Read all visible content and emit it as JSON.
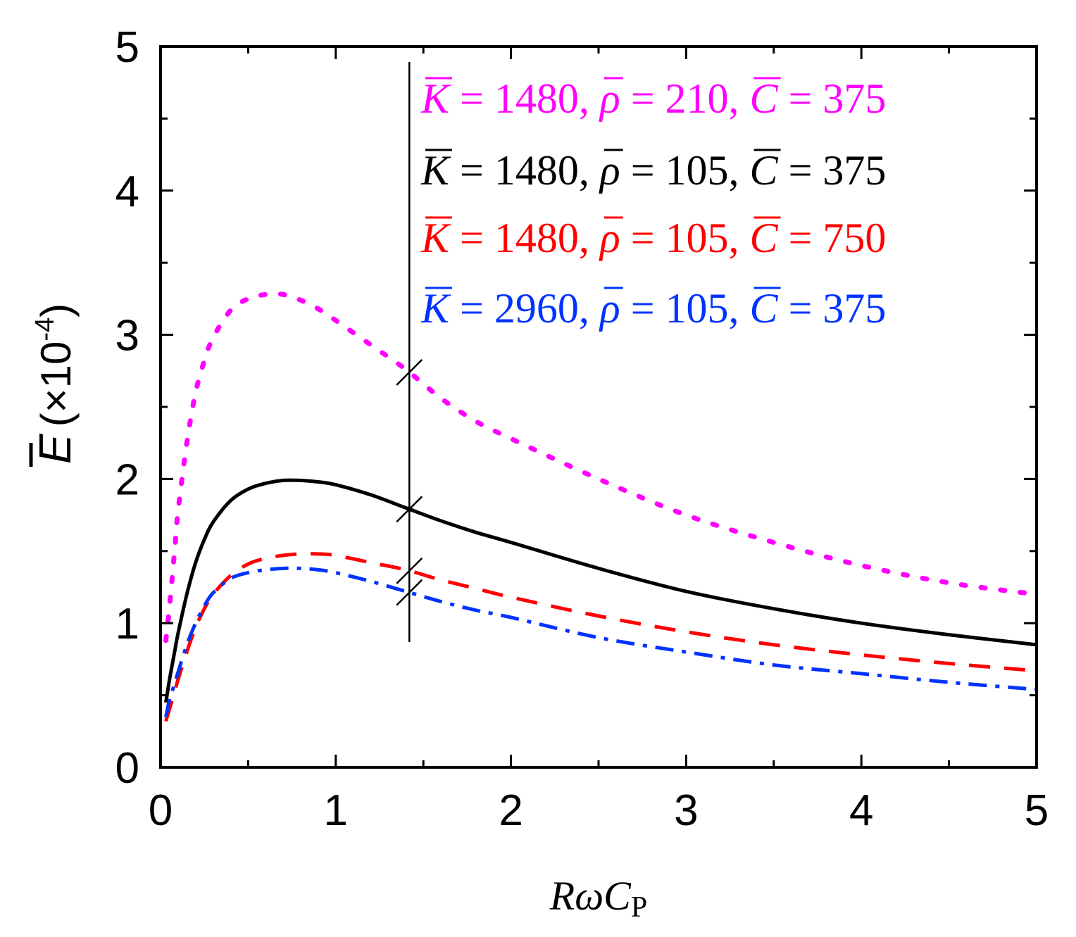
{
  "chart_data": {
    "type": "line",
    "xlabel": "RωCP",
    "xlabel_parts": {
      "main": "RωC",
      "subscript": "P"
    },
    "ylabel": "E (×10-4)",
    "ylabel_parts": {
      "symbol": "E",
      "unit_prefix": "(×10",
      "exponent": "-4",
      "unit_suffix": ")"
    },
    "xlim": [
      0,
      5
    ],
    "ylim": [
      0,
      5
    ],
    "x_ticks": [
      0,
      1,
      2,
      3,
      4,
      5
    ],
    "y_ticks": [
      0,
      1,
      2,
      3,
      4,
      5
    ],
    "x_tick_labels": [
      "0",
      "1",
      "2",
      "3",
      "4",
      "5"
    ],
    "y_tick_labels": [
      "0",
      "1",
      "2",
      "3",
      "4",
      "5"
    ],
    "x_minor_step": 0.5,
    "y_minor_step": 0.5,
    "grid": false,
    "legend_position": "top-right",
    "annotation_line_x": 1.42,
    "series": [
      {
        "name": "K̄ = 1480, ρ̄ = 210, C̄ = 375",
        "color": "#ff00ff",
        "style": "dotted",
        "legend": {
          "k": "1480",
          "rho": "210",
          "c": "375"
        },
        "x": [
          0.03,
          0.05,
          0.08,
          0.1,
          0.15,
          0.2,
          0.25,
          0.3,
          0.4,
          0.5,
          0.6,
          0.7,
          0.8,
          0.9,
          1.0,
          1.2,
          1.4,
          1.6,
          1.8,
          2.0,
          2.5,
          3.0,
          3.5,
          4.0,
          4.5,
          5.0
        ],
        "y": [
          0.88,
          1.1,
          1.5,
          1.78,
          2.25,
          2.6,
          2.82,
          2.98,
          3.17,
          3.25,
          3.28,
          3.28,
          3.24,
          3.18,
          3.1,
          2.93,
          2.76,
          2.56,
          2.4,
          2.28,
          2.0,
          1.75,
          1.56,
          1.4,
          1.28,
          1.2
        ]
      },
      {
        "name": "K̄ = 1480, ρ̄ = 105, C̄ = 375",
        "color": "#000000",
        "style": "solid",
        "legend": {
          "k": "1480",
          "rho": "105",
          "c": "375"
        },
        "x": [
          0.03,
          0.05,
          0.08,
          0.1,
          0.15,
          0.2,
          0.25,
          0.3,
          0.4,
          0.5,
          0.6,
          0.7,
          0.8,
          0.9,
          1.0,
          1.2,
          1.4,
          1.6,
          1.8,
          2.0,
          2.5,
          3.0,
          3.5,
          4.0,
          4.5,
          5.0
        ],
        "y": [
          0.45,
          0.6,
          0.8,
          0.93,
          1.2,
          1.42,
          1.58,
          1.7,
          1.85,
          1.93,
          1.97,
          1.99,
          1.99,
          1.98,
          1.96,
          1.89,
          1.8,
          1.71,
          1.63,
          1.56,
          1.38,
          1.22,
          1.1,
          1.0,
          0.92,
          0.85
        ]
      },
      {
        "name": "K̄ = 1480, ρ̄ = 105, C̄ = 750",
        "color": "#ff0000",
        "style": "dashed",
        "legend": {
          "k": "1480",
          "rho": "105",
          "c": "750"
        },
        "x": [
          0.03,
          0.05,
          0.08,
          0.1,
          0.15,
          0.2,
          0.25,
          0.3,
          0.4,
          0.5,
          0.6,
          0.7,
          0.8,
          0.9,
          1.0,
          1.2,
          1.4,
          1.6,
          1.8,
          2.0,
          2.5,
          3.0,
          3.5,
          4.0,
          4.5,
          5.0
        ],
        "y": [
          0.32,
          0.4,
          0.52,
          0.61,
          0.8,
          0.97,
          1.1,
          1.2,
          1.33,
          1.41,
          1.45,
          1.47,
          1.48,
          1.48,
          1.47,
          1.42,
          1.37,
          1.3,
          1.24,
          1.18,
          1.05,
          0.94,
          0.85,
          0.78,
          0.72,
          0.67
        ]
      },
      {
        "name": "K̄ = 2960, ρ̄ = 105, C̄ = 375",
        "color": "#0033ff",
        "style": "dashdot",
        "legend": {
          "k": "2960",
          "rho": "105",
          "c": "375"
        },
        "x": [
          0.03,
          0.05,
          0.08,
          0.1,
          0.15,
          0.2,
          0.25,
          0.3,
          0.4,
          0.5,
          0.6,
          0.7,
          0.8,
          0.9,
          1.0,
          1.2,
          1.4,
          1.6,
          1.8,
          2.0,
          2.5,
          3.0,
          3.5,
          4.0,
          4.5,
          5.0
        ],
        "y": [
          0.35,
          0.46,
          0.58,
          0.66,
          0.85,
          1.0,
          1.12,
          1.21,
          1.31,
          1.35,
          1.37,
          1.38,
          1.38,
          1.37,
          1.35,
          1.29,
          1.22,
          1.15,
          1.09,
          1.04,
          0.9,
          0.8,
          0.71,
          0.65,
          0.59,
          0.54
        ]
      }
    ]
  }
}
